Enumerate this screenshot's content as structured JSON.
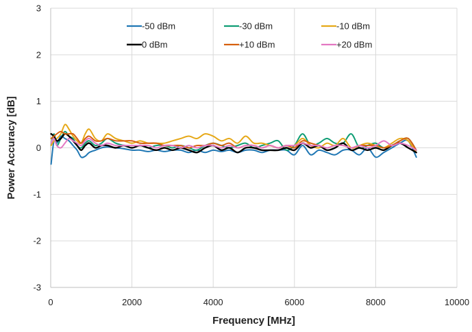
{
  "chart_data": {
    "type": "line",
    "title": "",
    "xlabel": "Frequency [MHz]",
    "ylabel": "Power Accuracy [dB]",
    "xlim": [
      0,
      10000
    ],
    "ylim": [
      -3,
      3
    ],
    "xticks": [
      0,
      2000,
      4000,
      6000,
      8000,
      10000
    ],
    "yticks": [
      -3,
      -2,
      -1,
      0,
      1,
      2,
      3
    ],
    "grid": true,
    "legend_position": "top",
    "series": [
      {
        "name": "-50 dBm",
        "color": "#1f77b4",
        "x": [
          10,
          80,
          150,
          250,
          350,
          450,
          550,
          650,
          750,
          850,
          950,
          1100,
          1250,
          1400,
          1600,
          1800,
          2000,
          2200,
          2400,
          2600,
          2800,
          3000,
          3200,
          3400,
          3600,
          3800,
          4000,
          4200,
          4400,
          4600,
          4800,
          5000,
          5200,
          5400,
          5600,
          5800,
          6000,
          6200,
          6400,
          6600,
          6800,
          7000,
          7200,
          7400,
          7600,
          7800,
          8000,
          8200,
          8400,
          8600,
          8800,
          9000
        ],
        "y": [
          -0.35,
          0.15,
          0.1,
          0.25,
          0.2,
          0.15,
          0.05,
          -0.05,
          -0.2,
          -0.18,
          -0.1,
          -0.05,
          0.0,
          0.02,
          0.0,
          -0.02,
          -0.05,
          -0.05,
          -0.08,
          -0.05,
          -0.08,
          -0.05,
          -0.05,
          -0.1,
          -0.05,
          -0.1,
          -0.05,
          -0.08,
          -0.05,
          -0.1,
          -0.05,
          -0.05,
          -0.1,
          -0.05,
          -0.05,
          -0.05,
          -0.15,
          0.05,
          -0.15,
          -0.05,
          -0.1,
          -0.15,
          -0.05,
          -0.05,
          -0.15,
          0.0,
          -0.2,
          -0.1,
          0.0,
          0.1,
          0.15,
          -0.2
        ]
      },
      {
        "name": "-30 dBm",
        "color": "#0f9d74",
        "x": [
          10,
          80,
          150,
          250,
          350,
          450,
          550,
          650,
          750,
          850,
          950,
          1100,
          1250,
          1400,
          1600,
          1800,
          2000,
          2200,
          2400,
          2600,
          2800,
          3000,
          3200,
          3400,
          3600,
          3800,
          4000,
          4200,
          4400,
          4600,
          4800,
          5000,
          5200,
          5400,
          5600,
          5800,
          6000,
          6200,
          6400,
          6600,
          6800,
          7000,
          7200,
          7400,
          7600,
          7800,
          8000,
          8200,
          8400,
          8600,
          8800,
          9000
        ],
        "y": [
          0.05,
          0.3,
          0.05,
          0.2,
          0.35,
          0.25,
          0.2,
          0.05,
          0.0,
          0.1,
          0.15,
          0.05,
          0.1,
          0.2,
          0.1,
          0.05,
          0.0,
          0.05,
          0.0,
          0.05,
          0.05,
          0.0,
          0.05,
          0.0,
          -0.05,
          0.05,
          0.1,
          0.05,
          0.0,
          0.05,
          0.1,
          0.0,
          0.05,
          0.1,
          0.15,
          -0.05,
          0.05,
          0.3,
          0.05,
          0.1,
          0.2,
          0.1,
          0.1,
          0.3,
          0.0,
          0.05,
          0.1,
          0.0,
          0.05,
          0.15,
          0.2,
          -0.05
        ]
      },
      {
        "name": "-10 dBm",
        "color": "#e6a817",
        "x": [
          10,
          80,
          150,
          250,
          350,
          450,
          550,
          650,
          750,
          850,
          950,
          1100,
          1250,
          1400,
          1600,
          1800,
          2000,
          2200,
          2400,
          2600,
          2800,
          3000,
          3200,
          3400,
          3600,
          3800,
          4000,
          4200,
          4400,
          4600,
          4800,
          5000,
          5200,
          5400,
          5600,
          5800,
          6000,
          6200,
          6400,
          6600,
          6800,
          7000,
          7200,
          7400,
          7600,
          7800,
          8000,
          8200,
          8400,
          8600,
          8800,
          9000
        ],
        "y": [
          0.05,
          0.15,
          0.2,
          0.3,
          0.5,
          0.4,
          0.25,
          0.15,
          0.1,
          0.3,
          0.4,
          0.2,
          0.15,
          0.3,
          0.2,
          0.15,
          0.1,
          0.15,
          0.1,
          0.1,
          0.1,
          0.15,
          0.2,
          0.25,
          0.2,
          0.3,
          0.25,
          0.15,
          0.2,
          0.1,
          0.25,
          0.1,
          0.1,
          0.05,
          0.0,
          0.05,
          0.05,
          0.2,
          0.05,
          0.0,
          0.1,
          0.05,
          0.2,
          0.0,
          0.05,
          0.1,
          0.05,
          0.0,
          0.1,
          0.2,
          0.15,
          -0.1
        ]
      },
      {
        "name": "0 dBm",
        "color": "#000000",
        "x": [
          10,
          80,
          150,
          250,
          350,
          450,
          550,
          650,
          750,
          850,
          950,
          1100,
          1250,
          1400,
          1600,
          1800,
          2000,
          2200,
          2400,
          2600,
          2800,
          3000,
          3200,
          3400,
          3600,
          3800,
          4000,
          4200,
          4400,
          4600,
          4800,
          5000,
          5200,
          5400,
          5600,
          5800,
          6000,
          6200,
          6400,
          6600,
          6800,
          7000,
          7200,
          7400,
          7600,
          7800,
          8000,
          8200,
          8400,
          8600,
          8800,
          9000
        ],
        "y": [
          0.3,
          0.25,
          0.15,
          0.2,
          0.3,
          0.25,
          0.15,
          0.05,
          -0.05,
          0.05,
          0.1,
          0.0,
          0.05,
          0.05,
          0.0,
          0.05,
          0.0,
          0.05,
          0.0,
          -0.05,
          0.0,
          -0.05,
          0.0,
          -0.05,
          -0.1,
          0.0,
          0.05,
          -0.05,
          0.0,
          -0.1,
          0.0,
          0.0,
          -0.05,
          -0.05,
          -0.05,
          0.0,
          -0.05,
          0.1,
          0.0,
          0.05,
          -0.05,
          0.0,
          0.1,
          -0.05,
          0.0,
          -0.05,
          0.0,
          -0.05,
          0.05,
          0.1,
          0.0,
          -0.1
        ]
      },
      {
        "name": "+10 dBm",
        "color": "#d65f0e",
        "x": [
          10,
          80,
          150,
          250,
          350,
          450,
          550,
          650,
          750,
          850,
          950,
          1100,
          1250,
          1400,
          1600,
          1800,
          2000,
          2200,
          2400,
          2600,
          2800,
          3000,
          3200,
          3400,
          3600,
          3800,
          4000,
          4200,
          4400,
          4600,
          4800,
          5000,
          5200,
          5400,
          5600,
          5800,
          6000,
          6200,
          6400,
          6600,
          6800,
          7000,
          7200,
          7400,
          7600,
          7800,
          8000,
          8200,
          8400,
          8600,
          8800,
          9000
        ],
        "y": [
          0.2,
          0.25,
          0.3,
          0.35,
          0.3,
          0.3,
          0.3,
          0.2,
          0.1,
          0.2,
          0.25,
          0.15,
          0.15,
          0.2,
          0.15,
          0.15,
          0.15,
          0.1,
          0.1,
          0.1,
          0.05,
          0.05,
          0.05,
          0.0,
          0.05,
          0.05,
          0.1,
          0.05,
          0.1,
          0.0,
          0.05,
          0.05,
          0.0,
          0.05,
          0.0,
          0.05,
          0.0,
          0.15,
          0.1,
          0.05,
          0.0,
          0.05,
          0.05,
          0.0,
          0.05,
          0.05,
          0.05,
          0.0,
          0.05,
          0.15,
          0.2,
          -0.05
        ]
      },
      {
        "name": "+20 dBm",
        "color": "#e377c2",
        "x": [
          10,
          80,
          150,
          250,
          350,
          450,
          550,
          650,
          750,
          850,
          950,
          1100,
          1250,
          1400,
          1600,
          1800,
          2000,
          2200,
          2400,
          2600,
          2800,
          3000,
          3200,
          3400,
          3600,
          3800,
          4000,
          4200,
          4400,
          4600,
          4800,
          5000,
          5200,
          5400,
          5600,
          5800,
          6000,
          6200,
          6400,
          6600,
          6800,
          7000,
          7200,
          7400,
          7600,
          7800,
          8000,
          8200,
          8400,
          8600,
          8800,
          9000
        ],
        "y": [
          0.1,
          0.2,
          0.05,
          0.0,
          0.1,
          0.2,
          0.15,
          0.1,
          0.05,
          0.15,
          0.2,
          0.1,
          0.05,
          0.1,
          0.05,
          0.05,
          0.05,
          0.05,
          0.05,
          0.0,
          0.05,
          0.05,
          0.0,
          0.05,
          0.0,
          0.05,
          0.05,
          0.0,
          0.05,
          0.0,
          0.05,
          0.05,
          0.0,
          0.05,
          0.0,
          0.05,
          0.05,
          0.1,
          0.05,
          0.05,
          0.0,
          0.05,
          0.05,
          0.0,
          0.05,
          0.0,
          0.05,
          0.15,
          0.05,
          0.1,
          0.05,
          -0.05
        ]
      }
    ]
  }
}
